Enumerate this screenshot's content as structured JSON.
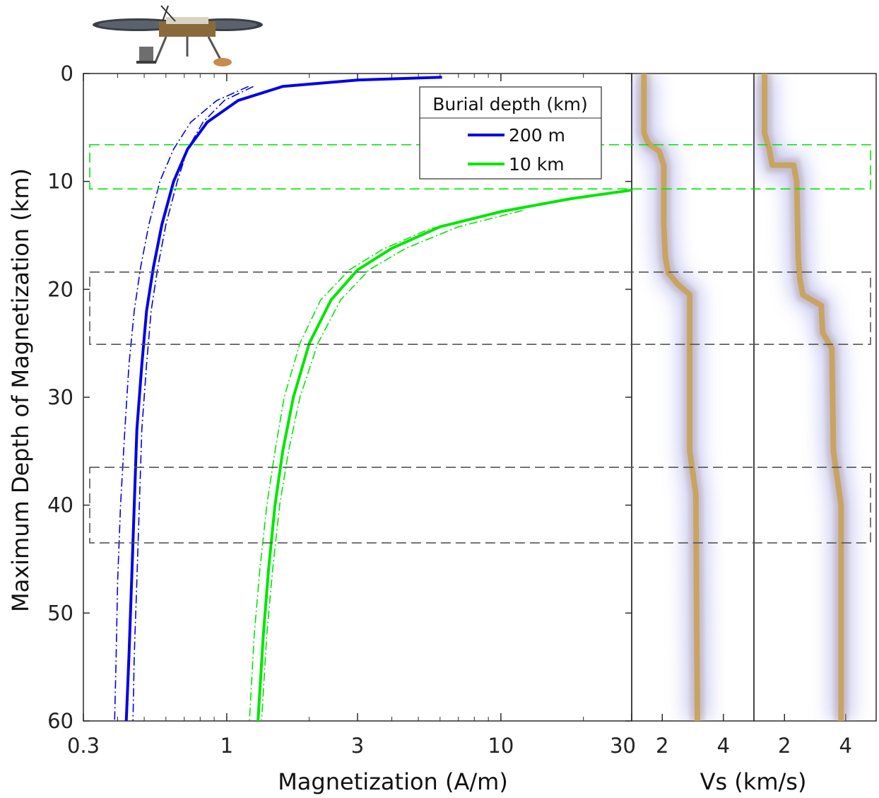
{
  "chart_data": [
    {
      "type": "line",
      "xscale": "log",
      "xlim": [
        0.3,
        30
      ],
      "ylim": [
        0,
        60
      ],
      "y_reversed": true,
      "xlabel": "Magnetization (A/m)",
      "ylabel": "Maximum Depth of Magnetization (km)",
      "xticks": [
        0.3,
        1,
        3,
        10,
        30
      ],
      "xtick_labels": [
        "0.3",
        "1",
        "3",
        "10",
        "30"
      ],
      "yticks": [
        0,
        10,
        20,
        30,
        40,
        50,
        60
      ],
      "ytick_labels": [
        "0",
        "10",
        "20",
        "30",
        "40",
        "50",
        "60"
      ],
      "legend": {
        "title": "Burial depth (km)",
        "position": "top-right",
        "entries": [
          "200 m",
          "10 km"
        ]
      },
      "series": [
        {
          "name": "200 m",
          "color": "#0000e6",
          "style": "solid",
          "points": [
            [
              6.1,
              0.35
            ],
            [
              3.0,
              0.6
            ],
            [
              1.6,
              1.2
            ],
            [
              1.1,
              2.5
            ],
            [
              0.85,
              4.5
            ],
            [
              0.72,
              7
            ],
            [
              0.64,
              10
            ],
            [
              0.58,
              14
            ],
            [
              0.54,
              18
            ],
            [
              0.51,
              22
            ],
            [
              0.49,
              27
            ],
            [
              0.47,
              33
            ],
            [
              0.46,
              40
            ],
            [
              0.45,
              47
            ],
            [
              0.44,
              54
            ],
            [
              0.43,
              60
            ]
          ]
        },
        {
          "name": "200 m lower bound",
          "color": "#0000e6",
          "style": "dashdot",
          "points": [
            [
              1.2,
              1.2
            ],
            [
              0.92,
              2.5
            ],
            [
              0.74,
              4.5
            ],
            [
              0.64,
              7
            ],
            [
              0.57,
              10
            ],
            [
              0.52,
              14
            ],
            [
              0.485,
              18
            ],
            [
              0.46,
              22
            ],
            [
              0.44,
              27
            ],
            [
              0.425,
              33
            ],
            [
              0.41,
              40
            ],
            [
              0.4,
              47
            ],
            [
              0.395,
              54
            ],
            [
              0.39,
              60
            ]
          ]
        },
        {
          "name": "200 m upper bound",
          "color": "#0000e6",
          "style": "dashdot",
          "points": [
            [
              1.25,
              1.2
            ],
            [
              0.98,
              2.5
            ],
            [
              0.82,
              4.5
            ],
            [
              0.72,
              7
            ],
            [
              0.66,
              10
            ],
            [
              0.6,
              14
            ],
            [
              0.56,
              18
            ],
            [
              0.53,
              22
            ],
            [
              0.51,
              27
            ],
            [
              0.49,
              33
            ],
            [
              0.48,
              40
            ],
            [
              0.47,
              47
            ],
            [
              0.46,
              54
            ],
            [
              0.455,
              60
            ]
          ]
        },
        {
          "name": "10 km",
          "color": "#00e600",
          "style": "solid",
          "points": [
            [
              30,
              10.8
            ],
            [
              18,
              11.6
            ],
            [
              10,
              12.8
            ],
            [
              6.0,
              14.2
            ],
            [
              4.0,
              16.2
            ],
            [
              3.0,
              18.2
            ],
            [
              2.4,
              21
            ],
            [
              2.0,
              25
            ],
            [
              1.75,
              30
            ],
            [
              1.6,
              35
            ],
            [
              1.5,
              40
            ],
            [
              1.42,
              46
            ],
            [
              1.36,
              52
            ],
            [
              1.3,
              60
            ]
          ]
        },
        {
          "name": "10 km lower bound",
          "color": "#00e600",
          "style": "dashdot",
          "points": [
            [
              12,
              12.7
            ],
            [
              7.0,
              14.2
            ],
            [
              4.5,
              16.2
            ],
            [
              3.3,
              18.2
            ],
            [
              2.6,
              21
            ],
            [
              2.15,
              25
            ],
            [
              1.85,
              30
            ],
            [
              1.68,
              35
            ],
            [
              1.56,
              40
            ],
            [
              1.47,
              46
            ],
            [
              1.4,
              52
            ],
            [
              1.34,
              60
            ]
          ]
        },
        {
          "name": "10 km upper bound",
          "color": "#00e600",
          "style": "dashdot",
          "points": [
            [
              10,
              12.9
            ],
            [
              5.5,
              14.4
            ],
            [
              3.7,
              16.3
            ],
            [
              2.8,
              18.2
            ],
            [
              2.2,
              21
            ],
            [
              1.85,
              25
            ],
            [
              1.62,
              30
            ],
            [
              1.5,
              35
            ],
            [
              1.4,
              40
            ],
            [
              1.32,
              46
            ],
            [
              1.26,
              52
            ],
            [
              1.21,
              60
            ]
          ]
        }
      ],
      "bands": [
        {
          "y": [
            6.6,
            10.7
          ],
          "color": "#00e600"
        },
        {
          "y": [
            18.4,
            25.1
          ],
          "color": "#555555"
        },
        {
          "y": [
            36.5,
            43.5
          ],
          "color": "#555555"
        }
      ]
    },
    {
      "type": "line",
      "xlim": [
        1,
        5
      ],
      "ylim": [
        0,
        60
      ],
      "y_reversed": true,
      "xlabel": "Vs (km/s)",
      "xticks": [
        2,
        4
      ],
      "xtick_labels": [
        "2",
        "4"
      ],
      "series": [
        {
          "color": "#c8a050",
          "style": "solid",
          "points": [
            [
              1.4,
              0
            ],
            [
              1.4,
              5.5
            ],
            [
              1.55,
              6.5
            ],
            [
              1.9,
              7.2
            ],
            [
              2.05,
              8.5
            ],
            [
              2.05,
              14
            ],
            [
              2.1,
              17
            ],
            [
              2.2,
              18.5
            ],
            [
              2.5,
              19.5
            ],
            [
              2.9,
              20.5
            ],
            [
              2.9,
              35
            ],
            [
              3.1,
              39
            ],
            [
              3.15,
              60
            ]
          ]
        }
      ]
    },
    {
      "type": "line",
      "xlim": [
        1,
        5
      ],
      "ylim": [
        0,
        60
      ],
      "y_reversed": true,
      "xtick_labels": [
        "2",
        "4"
      ],
      "xticks": [
        2,
        4
      ],
      "series": [
        {
          "color": "#c8a050",
          "style": "solid",
          "points": [
            [
              1.35,
              0
            ],
            [
              1.35,
              5.5
            ],
            [
              1.5,
              7
            ],
            [
              1.6,
              8.5
            ],
            [
              2.3,
              8.5
            ],
            [
              2.4,
              10
            ],
            [
              2.45,
              17
            ],
            [
              2.5,
              19
            ],
            [
              2.6,
              20.5
            ],
            [
              3.2,
              21.5
            ],
            [
              3.25,
              24
            ],
            [
              3.55,
              25.5
            ],
            [
              3.6,
              35
            ],
            [
              3.85,
              40
            ],
            [
              3.85,
              60
            ]
          ]
        }
      ]
    }
  ]
}
